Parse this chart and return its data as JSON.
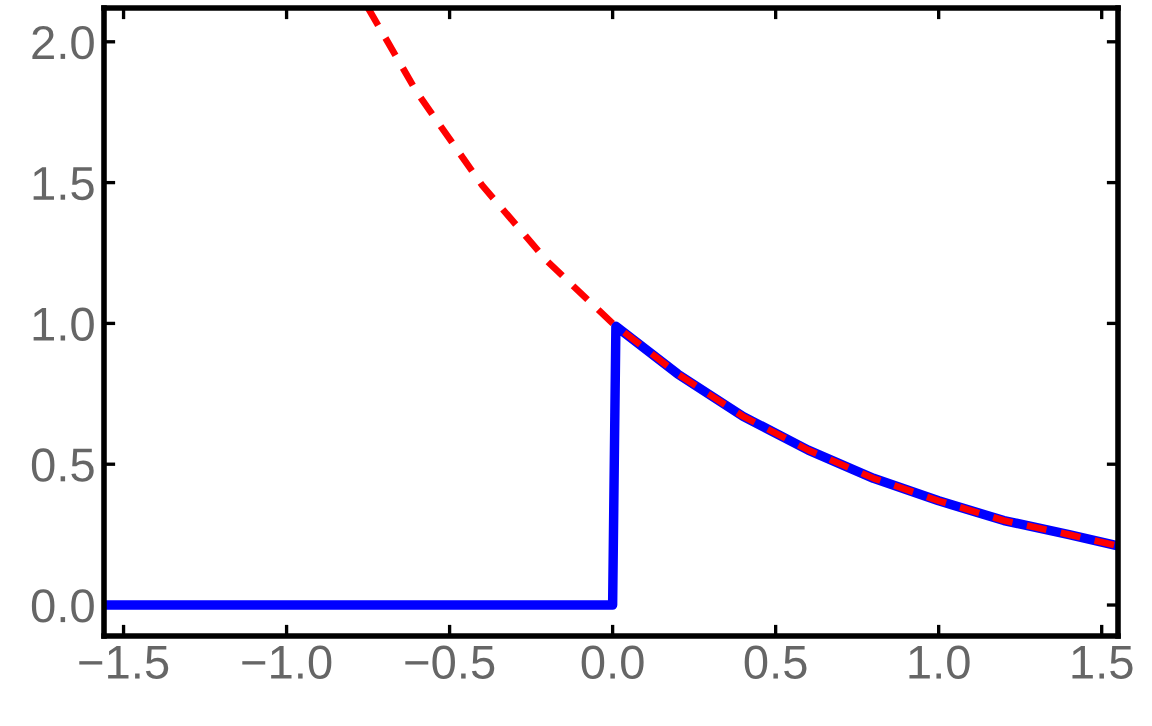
{
  "chart_data": {
    "type": "line",
    "xlim": [
      -1.56,
      1.55
    ],
    "ylim": [
      -0.11,
      2.12
    ],
    "xticks": [
      {
        "value": -1.5,
        "label": "−1.5"
      },
      {
        "value": -1.0,
        "label": "−1.0"
      },
      {
        "value": -0.5,
        "label": "−0.5"
      },
      {
        "value": 0.0,
        "label": "0.0"
      },
      {
        "value": 0.5,
        "label": "0.5"
      },
      {
        "value": 1.0,
        "label": "1.0"
      },
      {
        "value": 1.5,
        "label": "1.5"
      }
    ],
    "yticks": [
      {
        "value": 0.0,
        "label": "0.0"
      },
      {
        "value": 0.5,
        "label": "0.5"
      },
      {
        "value": 1.0,
        "label": "1.0"
      },
      {
        "value": 1.5,
        "label": "1.5"
      },
      {
        "value": 2.0,
        "label": "2.0"
      }
    ],
    "grid": false,
    "legend": false,
    "series": [
      {
        "color": "#ff0000",
        "line_style": "dashed",
        "x": [
          -0.75,
          -0.6,
          -0.4,
          -0.2,
          0.0,
          0.2,
          0.4,
          0.6,
          0.8,
          1.0,
          1.2,
          1.4,
          1.55
        ],
        "values": [
          2.12,
          1.82,
          1.49,
          1.22,
          1.0,
          0.82,
          0.67,
          0.55,
          0.45,
          0.37,
          0.3,
          0.25,
          0.21
        ]
      },
      {
        "color": "#0000ff",
        "line_style": "solid",
        "x": [
          -1.56,
          0.0,
          0.01,
          0.2,
          0.4,
          0.6,
          0.8,
          1.0,
          1.2,
          1.4,
          1.55
        ],
        "values": [
          0.0,
          0.0,
          0.99,
          0.82,
          0.67,
          0.55,
          0.45,
          0.37,
          0.3,
          0.25,
          0.21
        ]
      }
    ]
  }
}
